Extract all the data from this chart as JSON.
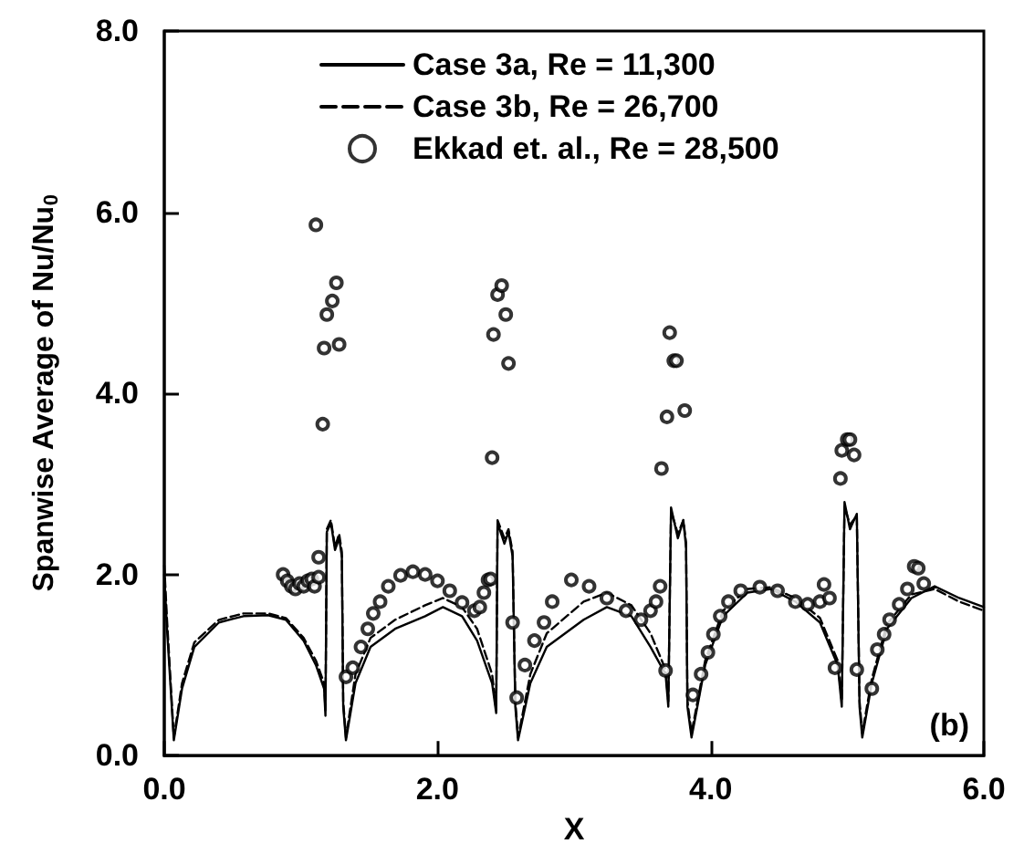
{
  "chart_data": {
    "type": "line",
    "xlabel": "X",
    "ylabel": "Spanwise Average of Nu/Nu$_{0}$",
    "xlim": [
      0,
      6
    ],
    "ylim": [
      0,
      8
    ],
    "xticks": [
      {
        "value": 0,
        "label": "0.0"
      },
      {
        "value": 2,
        "label": "2.0"
      },
      {
        "value": 4,
        "label": "4.0"
      },
      {
        "value": 6,
        "label": "6.0"
      }
    ],
    "yticks": [
      {
        "value": 0,
        "label": "0.0"
      },
      {
        "value": 2,
        "label": "2.0"
      },
      {
        "value": 4,
        "label": "4.0"
      },
      {
        "value": 6,
        "label": "6.0"
      },
      {
        "value": 8,
        "label": "8.0"
      }
    ],
    "legend": "top",
    "grid": false,
    "annotations": [
      "(b)"
    ],
    "series": [
      {
        "name": "Case 3a, Re = 11,300",
        "line_style": "solid",
        "marker": "none",
        "color": "#000000",
        "x": [
          0,
          0.02,
          0.07,
          0.13,
          0.22,
          0.4,
          0.58,
          0.76,
          0.89,
          1.02,
          1.11,
          1.17,
          1.18,
          1.19,
          1.22,
          1.25,
          1.28,
          1.3,
          1.31,
          1.33,
          1.4,
          1.51,
          1.69,
          1.91,
          2.04,
          2.18,
          2.29,
          2.4,
          2.43,
          2.44,
          2.49,
          2.52,
          2.55,
          2.57,
          2.59,
          2.68,
          2.8,
          3.07,
          3.24,
          3.42,
          3.56,
          3.67,
          3.69,
          3.71,
          3.76,
          3.8,
          3.82,
          3.83,
          3.86,
          3.96,
          4.09,
          4.27,
          4.44,
          4.62,
          4.8,
          4.93,
          4.96,
          4.98,
          5.02,
          5.07,
          5.09,
          5.11,
          5.18,
          5.29,
          5.47,
          5.64,
          5.82,
          6.0
        ],
        "values": [
          2.0,
          1.4,
          0.17,
          0.74,
          1.2,
          1.47,
          1.54,
          1.55,
          1.5,
          1.27,
          1.0,
          0.74,
          0.44,
          2.47,
          2.57,
          2.27,
          2.4,
          2.2,
          0.54,
          0.17,
          0.8,
          1.2,
          1.4,
          1.54,
          1.64,
          1.54,
          1.27,
          0.8,
          0.47,
          2.57,
          2.34,
          2.47,
          2.2,
          0.54,
          0.17,
          0.8,
          1.2,
          1.5,
          1.64,
          1.54,
          1.2,
          0.9,
          0.54,
          2.74,
          2.4,
          2.6,
          2.3,
          0.54,
          0.2,
          1.0,
          1.54,
          1.8,
          1.84,
          1.7,
          1.47,
          1.0,
          0.54,
          2.8,
          2.5,
          2.67,
          0.54,
          0.2,
          0.8,
          1.4,
          1.74,
          1.87,
          1.74,
          1.64
        ]
      },
      {
        "name": "Case 3b, Re = 26,700",
        "line_style": "dashed",
        "marker": "none",
        "color": "#000000",
        "x": [
          0,
          0.02,
          0.07,
          0.13,
          0.22,
          0.4,
          0.58,
          0.76,
          0.89,
          1.02,
          1.11,
          1.17,
          1.18,
          1.19,
          1.22,
          1.25,
          1.28,
          1.3,
          1.31,
          1.33,
          1.4,
          1.51,
          1.69,
          1.91,
          2.04,
          2.18,
          2.29,
          2.4,
          2.43,
          2.44,
          2.49,
          2.52,
          2.55,
          2.57,
          2.59,
          2.68,
          2.8,
          3.07,
          3.24,
          3.42,
          3.56,
          3.67,
          3.69,
          3.71,
          3.76,
          3.8,
          3.82,
          3.83,
          3.86,
          3.96,
          4.09,
          4.27,
          4.44,
          4.62,
          4.8,
          4.93,
          4.96,
          4.98,
          5.02,
          5.07,
          5.09,
          5.11,
          5.18,
          5.29,
          5.47,
          5.64,
          5.82,
          6.0
        ],
        "values": [
          2.1,
          1.5,
          0.2,
          0.8,
          1.25,
          1.5,
          1.57,
          1.57,
          1.52,
          1.3,
          1.05,
          0.8,
          0.5,
          2.5,
          2.6,
          2.3,
          2.45,
          2.25,
          0.6,
          0.2,
          0.9,
          1.3,
          1.5,
          1.66,
          1.74,
          1.64,
          1.4,
          0.9,
          0.5,
          2.6,
          2.4,
          2.5,
          2.25,
          0.6,
          0.2,
          0.9,
          1.35,
          1.7,
          1.8,
          1.66,
          1.35,
          0.95,
          0.6,
          2.7,
          2.45,
          2.6,
          2.35,
          0.6,
          0.25,
          1.05,
          1.6,
          1.84,
          1.86,
          1.74,
          1.52,
          1.05,
          0.6,
          2.75,
          2.55,
          2.65,
          0.6,
          0.25,
          0.85,
          1.45,
          1.78,
          1.84,
          1.7,
          1.6
        ]
      },
      {
        "name": "Ekkad et. al., Re = 28,500",
        "type": "scatter",
        "marker": "circle",
        "color": "#000000",
        "x": [
          0.87,
          0.9,
          0.93,
          0.96,
          0.99,
          1.02,
          1.05,
          1.08,
          1.1,
          1.13,
          1.13,
          1.11,
          1.16,
          1.17,
          1.19,
          1.23,
          1.26,
          1.28,
          1.33,
          1.38,
          1.44,
          1.49,
          1.53,
          1.58,
          1.64,
          1.73,
          1.82,
          1.91,
          2.0,
          2.09,
          2.18,
          2.27,
          2.31,
          2.34,
          2.37,
          2.39,
          2.4,
          2.41,
          2.44,
          2.47,
          2.5,
          2.52,
          2.55,
          2.58,
          2.64,
          2.71,
          2.78,
          2.84,
          2.98,
          3.11,
          3.24,
          3.38,
          3.49,
          3.56,
          3.6,
          3.63,
          3.67,
          3.64,
          3.68,
          3.7,
          3.73,
          3.75,
          3.81,
          3.87,
          3.93,
          3.98,
          4.02,
          4.07,
          4.13,
          4.22,
          4.36,
          4.49,
          4.62,
          4.71,
          4.8,
          4.83,
          4.87,
          4.91,
          4.95,
          4.96,
          5.0,
          5.02,
          5.05,
          5.07,
          5.18,
          5.22,
          5.27,
          5.31,
          5.38,
          5.44,
          5.49,
          5.52,
          5.56
        ],
        "values": [
          2.0,
          1.93,
          1.87,
          1.84,
          1.9,
          1.87,
          1.93,
          1.95,
          1.87,
          1.97,
          2.19,
          5.86,
          3.66,
          4.5,
          4.87,
          5.02,
          5.22,
          4.54,
          0.87,
          0.97,
          1.2,
          1.4,
          1.57,
          1.7,
          1.87,
          1.99,
          2.03,
          2.0,
          1.93,
          1.82,
          1.69,
          1.6,
          1.64,
          1.8,
          1.94,
          1.95,
          3.29,
          4.65,
          5.09,
          5.19,
          4.87,
          4.33,
          1.47,
          0.64,
          1.0,
          1.27,
          1.47,
          1.7,
          1.94,
          1.87,
          1.74,
          1.6,
          1.5,
          1.6,
          1.7,
          1.87,
          0.94,
          3.17,
          3.74,
          4.67,
          4.36,
          4.36,
          3.81,
          0.67,
          0.9,
          1.14,
          1.34,
          1.54,
          1.7,
          1.82,
          1.86,
          1.82,
          1.7,
          1.67,
          1.7,
          1.89,
          1.74,
          0.97,
          3.06,
          3.37,
          3.49,
          3.49,
          3.32,
          0.95,
          0.74,
          1.17,
          1.34,
          1.5,
          1.67,
          1.84,
          2.09,
          2.07,
          1.9
        ]
      }
    ]
  }
}
